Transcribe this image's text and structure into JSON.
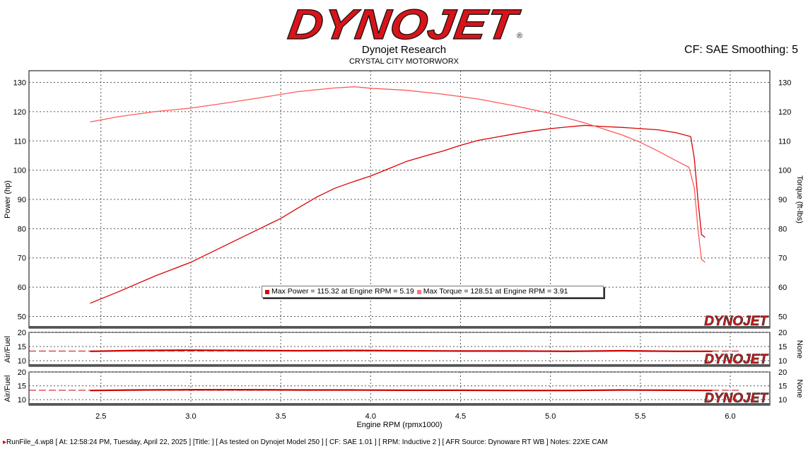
{
  "header": {
    "logo_text": "DYNOJET",
    "research": "Dynojet Research",
    "shop": "CRYSTAL CITY MOTORWORX",
    "cf_smoothing": "CF: SAE Smoothing: 5"
  },
  "footer": {
    "marker": "▸",
    "text": "RunFile_4.wp8 [ At: 12:58:24 PM, Tuesday, April 22, 2025 ] [Title: ]  [ As tested on Dynojet Model 250 ] [ CF: SAE 1.01 ] [ RPM: Inductive 2 ] [ AFR Source: Dynoware RT WB ] Notes: 22XE CAM"
  },
  "legend": {
    "power": "Max Power = 115.32 at Engine RPM = 5.19",
    "torque": "Max Torque = 128.51 at Engine RPM = 3.91"
  },
  "colors": {
    "power": "#dd0000",
    "torque": "#ff5a5a",
    "afr": "#cc0000",
    "brand": "#d7141a"
  },
  "chart_data": [
    {
      "type": "line",
      "title": "",
      "xlabel": "Engine RPM (rpmx1000)",
      "ylabel": "Power (hp)",
      "y2label": "Torque (ft-lbs)",
      "xlim": [
        2.1,
        6.22
      ],
      "ylim": [
        46,
        134
      ],
      "xticks": [
        "2.5",
        "3.0",
        "3.5",
        "4.0",
        "4.5",
        "5.0",
        "5.5",
        "6.0"
      ],
      "yticks": [
        "50",
        "60",
        "70",
        "80",
        "90",
        "100",
        "110",
        "120",
        "130"
      ],
      "grid": true,
      "series": [
        {
          "name": "Power",
          "x": [
            2.44,
            2.6,
            2.8,
            3.0,
            3.2,
            3.4,
            3.5,
            3.6,
            3.7,
            3.8,
            3.9,
            4.0,
            4.1,
            4.2,
            4.3,
            4.4,
            4.5,
            4.6,
            4.7,
            4.8,
            4.9,
            5.0,
            5.1,
            5.19,
            5.3,
            5.4,
            5.5,
            5.6,
            5.7,
            5.78,
            5.8,
            5.82,
            5.84,
            5.86
          ],
          "y": [
            54.5,
            58.5,
            63.8,
            68.5,
            74.5,
            80.5,
            83.5,
            87.2,
            90.8,
            93.8,
            96,
            98,
            100.5,
            103,
            104.8,
            106.5,
            108.5,
            110.2,
            111.3,
            112.4,
            113.4,
            114.2,
            114.8,
            115.32,
            114.9,
            114.6,
            114.2,
            113.8,
            112.8,
            111.5,
            104,
            90,
            78,
            77
          ]
        },
        {
          "name": "Torque",
          "x": [
            2.44,
            2.6,
            2.8,
            3.0,
            3.2,
            3.4,
            3.6,
            3.8,
            3.91,
            4.0,
            4.2,
            4.4,
            4.6,
            4.8,
            5.0,
            5.2,
            5.3,
            5.4,
            5.5,
            5.6,
            5.7,
            5.77,
            5.8,
            5.82,
            5.84,
            5.86
          ],
          "y": [
            116.5,
            118.3,
            120,
            121.2,
            123,
            124.9,
            126.9,
            128.1,
            128.51,
            128,
            127.3,
            126,
            124.3,
            122,
            119.4,
            116,
            114,
            112,
            109.5,
            106.5,
            103.2,
            101,
            94,
            80,
            69.5,
            68.5
          ]
        }
      ]
    },
    {
      "type": "line",
      "ylabel": "Air/Fuel",
      "y2label": "None",
      "xlim": [
        2.1,
        6.22
      ],
      "ylim": [
        8,
        20
      ],
      "yticks": [
        "10",
        "15",
        "20"
      ],
      "grid": true,
      "series": [
        {
          "name": "Air/Fuel",
          "x": [
            2.1,
            2.44,
            2.7,
            3.0,
            3.3,
            3.6,
            3.9,
            4.2,
            4.5,
            4.8,
            5.1,
            5.4,
            5.7,
            5.9,
            6.0
          ],
          "y": [
            13.4,
            13.3,
            13.6,
            13.7,
            13.6,
            13.5,
            13.6,
            13.5,
            13.4,
            13.4,
            13.3,
            13.5,
            13.3,
            13.3,
            13.4
          ]
        }
      ]
    },
    {
      "type": "line",
      "ylabel": "Air/Fuel",
      "y2label": "None",
      "xlim": [
        2.1,
        6.22
      ],
      "ylim": [
        8,
        20
      ],
      "yticks": [
        "10",
        "15",
        "20"
      ],
      "grid": true,
      "series": [
        {
          "name": "Air/Fuel",
          "x": [
            2.1,
            2.44,
            2.7,
            3.0,
            3.3,
            3.6,
            3.9,
            4.2,
            4.5,
            4.8,
            5.1,
            5.4,
            5.7,
            5.9,
            6.0
          ],
          "y": [
            13.5,
            13.3,
            13.5,
            13.6,
            13.6,
            13.5,
            13.5,
            13.4,
            13.4,
            13.3,
            13.3,
            13.5,
            13.4,
            13.3,
            13.4
          ]
        }
      ]
    }
  ]
}
